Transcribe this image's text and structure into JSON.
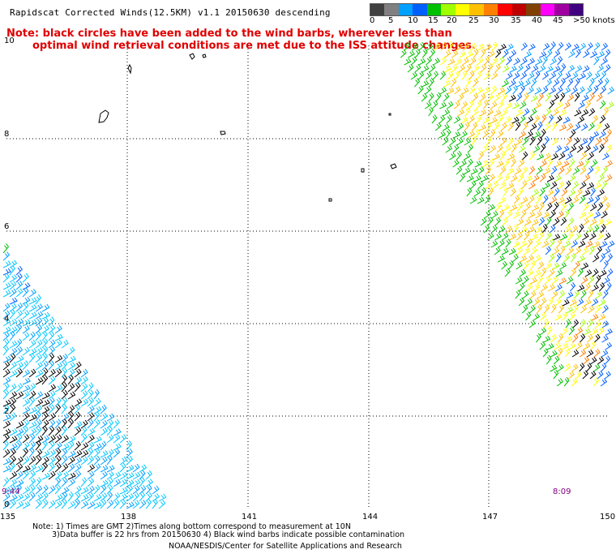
{
  "title": "Rapidscat Corrected Winds(12.5KM) v1.1 20150630 descending",
  "note_line1": "Note: black circles have been added to the wind barbs, wherever less than",
  "note_line2": "optimal wind retrieval conditions are met due to the ISS attitude changes.",
  "legend": {
    "labels": [
      "0",
      "5",
      "10",
      "15",
      "20",
      "25",
      "30",
      "35",
      "40",
      "45",
      ">50 knots"
    ],
    "colors": [
      "#404040",
      "#808080",
      "#00a0ff",
      "#0060ff",
      "#00c000",
      "#a0ff00",
      "#ffff00",
      "#ffc000",
      "#ff8000",
      "#ff0000",
      "#c00000",
      "#804000",
      "#ff00ff",
      "#a000a0",
      "#400080"
    ]
  },
  "axes": {
    "lon_ticks": [
      "135",
      "138",
      "141",
      "144",
      "147",
      "150"
    ],
    "lat_ticks": [
      "0",
      "2",
      "4",
      "6",
      "8",
      "10"
    ]
  },
  "time_labels": {
    "left": "9:44",
    "right": "8:09"
  },
  "footer": {
    "line1": "Note: 1) Times are GMT 2)Times along bottom correspond to measurement at 10N",
    "line2": "3)Data buffer is 22 hrs from 20150630 4) Black wind barbs indicate possible contamination",
    "line3": "NOAA/NESDIS/Center for Satellite Applications and Research"
  }
}
